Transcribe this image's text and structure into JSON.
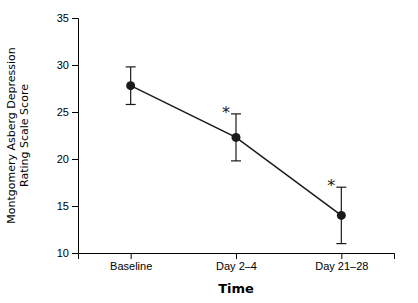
{
  "chart_data": {
    "type": "line",
    "categories": [
      "Baseline",
      "Day 2–4",
      "Day 21–28"
    ],
    "values": [
      27.8,
      22.3,
      14.0
    ],
    "errors": [
      2.0,
      2.5,
      3.0
    ],
    "x_label": "Time",
    "y_label": "Montgomery Asberg Depression\nRating Scale Score",
    "ylim": [
      10,
      35
    ],
    "yticks": [
      10,
      15,
      20,
      25,
      30,
      35
    ],
    "color": "#1a1a1a",
    "marker": "circle",
    "grid": false,
    "annotations": [
      {
        "text": "*",
        "category": "Day 2–4"
      },
      {
        "text": "*",
        "category": "Day 21–28"
      }
    ]
  }
}
